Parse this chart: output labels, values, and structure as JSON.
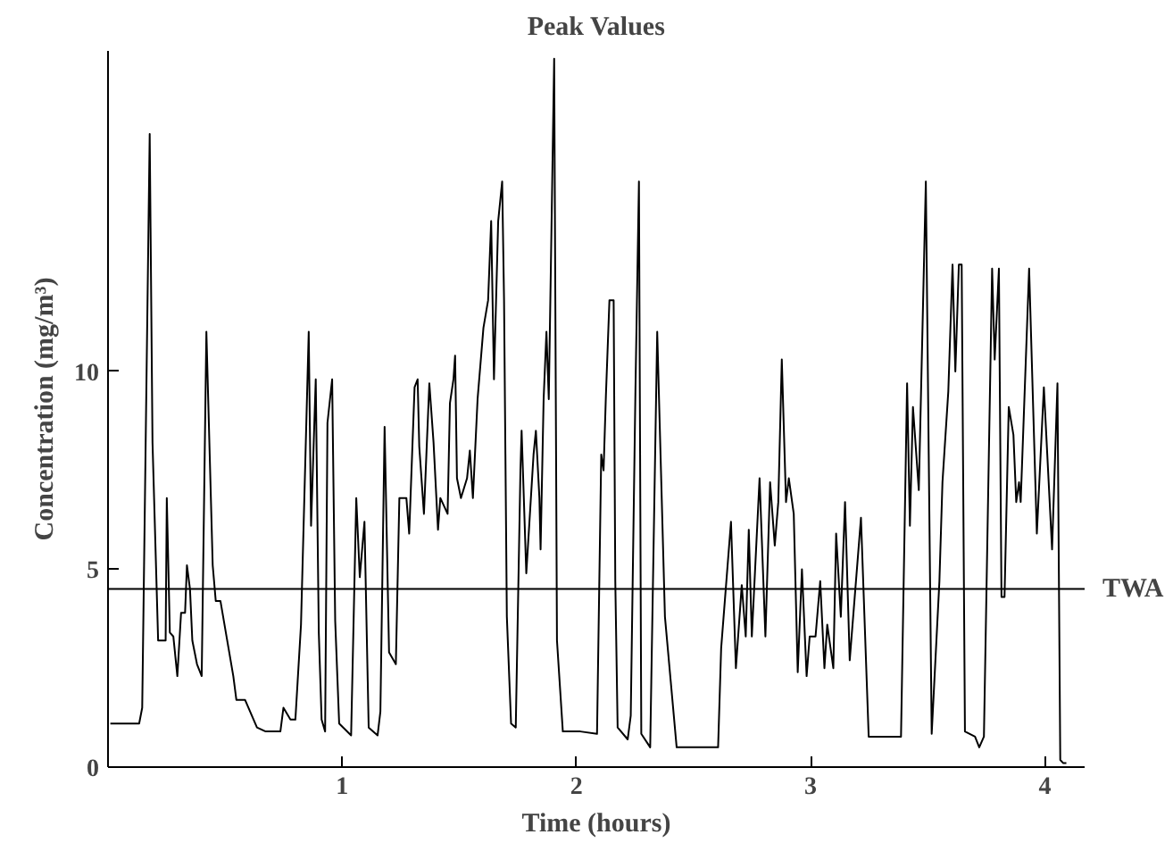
{
  "chart_data": {
    "type": "line",
    "title": "Peak Values",
    "xlabel": "Time (hours)",
    "ylabel": "Concentration (mg/m³)",
    "xlim": [
      0,
      4.17
    ],
    "ylim": [
      0,
      18.1
    ],
    "xticks": [
      1,
      2,
      3,
      4
    ],
    "yticks": [
      0,
      5,
      10
    ],
    "grid": false,
    "marker": "none",
    "line_style": "solid",
    "ref_lines": [
      {
        "axis": "y",
        "value": 4.5,
        "label": "TWA",
        "color": "#000000"
      }
    ],
    "series": [
      {
        "color": "#000000",
        "x": [
          0.01,
          0.133,
          0.146,
          0.178,
          0.19,
          0.214,
          0.246,
          0.251,
          0.264,
          0.279,
          0.296,
          0.312,
          0.329,
          0.337,
          0.35,
          0.36,
          0.38,
          0.4,
          0.42,
          0.447,
          0.46,
          0.48,
          0.535,
          0.548,
          0.585,
          0.636,
          0.673,
          0.736,
          0.749,
          0.779,
          0.8,
          0.824,
          0.857,
          0.867,
          0.887,
          0.9,
          0.912,
          0.927,
          0.937,
          0.957,
          0.97,
          0.987,
          1.038,
          1.06,
          1.075,
          1.095,
          1.113,
          1.151,
          1.163,
          1.181,
          1.2,
          1.229,
          1.244,
          1.274,
          1.286,
          1.309,
          1.322,
          1.329,
          1.349,
          1.372,
          1.39,
          1.409,
          1.419,
          1.45,
          1.46,
          1.475,
          1.482,
          1.49,
          1.507,
          1.533,
          1.545,
          1.558,
          1.578,
          1.603,
          1.623,
          1.636,
          1.648,
          1.666,
          1.683,
          1.691,
          1.703,
          1.721,
          1.741,
          1.761,
          1.766,
          1.786,
          1.817,
          1.827,
          1.842,
          1.847,
          1.86,
          1.872,
          1.882,
          1.905,
          1.917,
          1.942,
          2.017,
          2.088,
          2.106,
          2.116,
          2.126,
          2.141,
          2.159,
          2.166,
          2.176,
          2.219,
          2.232,
          2.252,
          2.267,
          2.277,
          2.315,
          2.345,
          2.378,
          2.428,
          2.605,
          2.618,
          2.66,
          2.681,
          2.706,
          2.723,
          2.736,
          2.749,
          2.782,
          2.807,
          2.827,
          2.847,
          2.862,
          2.877,
          2.895,
          2.907,
          2.928,
          2.945,
          2.963,
          2.983,
          2.996,
          3.021,
          3.041,
          3.059,
          3.071,
          3.097,
          3.109,
          3.129,
          3.147,
          3.167,
          3.215,
          3.248,
          3.386,
          3.412,
          3.424,
          3.437,
          3.462,
          3.492,
          3.517,
          3.55,
          3.563,
          3.588,
          3.606,
          3.618,
          3.633,
          3.645,
          3.659,
          3.702,
          3.72,
          3.74,
          3.775,
          3.786,
          3.804,
          3.815,
          3.828,
          3.846,
          3.866,
          3.878,
          3.89,
          3.897,
          3.933,
          3.966,
          3.996,
          4.031,
          4.054,
          4.066,
          4.079,
          4.092
        ],
        "values": [
          1.1,
          1.1,
          1.5,
          16.0,
          8.2,
          3.2,
          3.2,
          6.8,
          3.4,
          3.3,
          2.3,
          3.9,
          3.9,
          5.1,
          4.5,
          3.2,
          2.6,
          2.3,
          11.0,
          5.1,
          4.2,
          4.2,
          2.3,
          1.7,
          1.7,
          1.0,
          0.9,
          0.9,
          1.5,
          1.2,
          1.2,
          3.6,
          11.0,
          6.1,
          9.8,
          3.4,
          1.2,
          0.9,
          8.7,
          9.8,
          3.7,
          1.1,
          0.8,
          6.8,
          4.8,
          6.2,
          1.0,
          0.8,
          1.4,
          8.6,
          2.9,
          2.6,
          6.8,
          6.8,
          5.9,
          9.6,
          9.8,
          8.1,
          6.4,
          9.7,
          8.2,
          6.0,
          6.8,
          6.4,
          9.2,
          9.8,
          10.4,
          7.3,
          6.8,
          7.3,
          8.0,
          6.8,
          9.3,
          11.1,
          11.8,
          13.8,
          9.8,
          13.8,
          14.8,
          11.8,
          3.8,
          1.1,
          1.0,
          7.5,
          8.5,
          4.9,
          7.9,
          8.5,
          6.8,
          5.5,
          9.3,
          11.0,
          9.3,
          17.9,
          3.2,
          0.9,
          0.9,
          0.84,
          7.9,
          7.5,
          9.4,
          11.8,
          11.8,
          4.7,
          1.0,
          0.7,
          1.3,
          9.5,
          14.8,
          0.84,
          0.5,
          11.0,
          3.8,
          0.5,
          0.5,
          3.0,
          6.2,
          2.5,
          4.6,
          3.3,
          6.0,
          3.3,
          7.3,
          3.3,
          7.2,
          5.6,
          6.7,
          10.3,
          6.7,
          7.3,
          6.4,
          2.4,
          5.0,
          2.3,
          3.3,
          3.3,
          4.7,
          2.5,
          3.6,
          2.5,
          5.9,
          3.8,
          6.7,
          2.7,
          6.3,
          0.77,
          0.77,
          9.7,
          6.1,
          9.1,
          7.0,
          14.8,
          0.84,
          4.7,
          7.2,
          9.5,
          12.7,
          10.0,
          12.7,
          12.7,
          0.9,
          0.77,
          0.5,
          0.77,
          12.6,
          10.3,
          12.6,
          4.3,
          4.3,
          9.1,
          8.4,
          6.7,
          7.2,
          6.7,
          12.6,
          5.9,
          9.6,
          5.5,
          9.7,
          0.18,
          0.1,
          0.1
        ]
      }
    ]
  }
}
